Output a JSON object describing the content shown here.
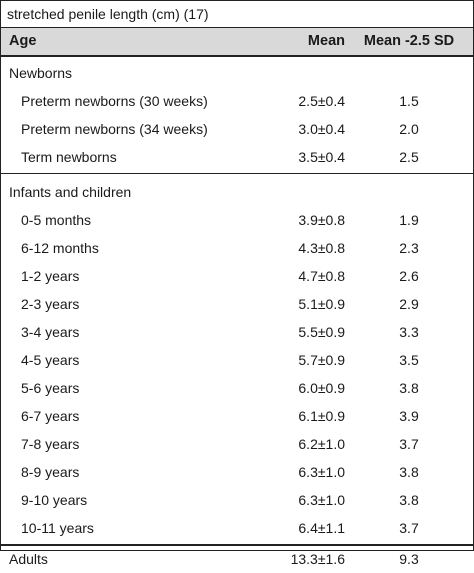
{
  "caption": "stretched penile length (cm) (17)",
  "header": {
    "age": "Age",
    "mean": "Mean",
    "sd": "Mean -2.5 SD"
  },
  "newborns": {
    "label": "Newborns",
    "rows": [
      {
        "age": "Preterm newborns (30 weeks)",
        "mean": "2.5±0.4",
        "sd": "1.5"
      },
      {
        "age": "Preterm newborns (34 weeks)",
        "mean": "3.0±0.4",
        "sd": "2.0"
      },
      {
        "age": "Term newborns",
        "mean": "3.5±0.4",
        "sd": "2.5"
      }
    ]
  },
  "infants": {
    "label": "Infants and children",
    "rows": [
      {
        "age": "0-5 months",
        "mean": "3.9±0.8",
        "sd": "1.9"
      },
      {
        "age": "6-12 months",
        "mean": "4.3±0.8",
        "sd": "2.3"
      },
      {
        "age": "1-2 years",
        "mean": "4.7±0.8",
        "sd": "2.6"
      },
      {
        "age": "2-3 years",
        "mean": "5.1±0.9",
        "sd": "2.9"
      },
      {
        "age": "3-4 years",
        "mean": "5.5±0.9",
        "sd": "3.3"
      },
      {
        "age": "4-5 years",
        "mean": "5.7±0.9",
        "sd": "3.5"
      },
      {
        "age": "5-6 years",
        "mean": "6.0±0.9",
        "sd": "3.8"
      },
      {
        "age": "6-7 years",
        "mean": "6.1±0.9",
        "sd": "3.9"
      },
      {
        "age": "7-8 years",
        "mean": "6.2±1.0",
        "sd": "3.7"
      },
      {
        "age": "8-9 years",
        "mean": "6.3±1.0",
        "sd": "3.8"
      },
      {
        "age": "9-10 years",
        "mean": "6.3±1.0",
        "sd": "3.8"
      },
      {
        "age": "10-11 years",
        "mean": "6.4±1.1",
        "sd": "3.7"
      }
    ]
  },
  "adults": {
    "age": "Adults",
    "mean": "13.3±1.6",
    "sd": "9.3"
  }
}
